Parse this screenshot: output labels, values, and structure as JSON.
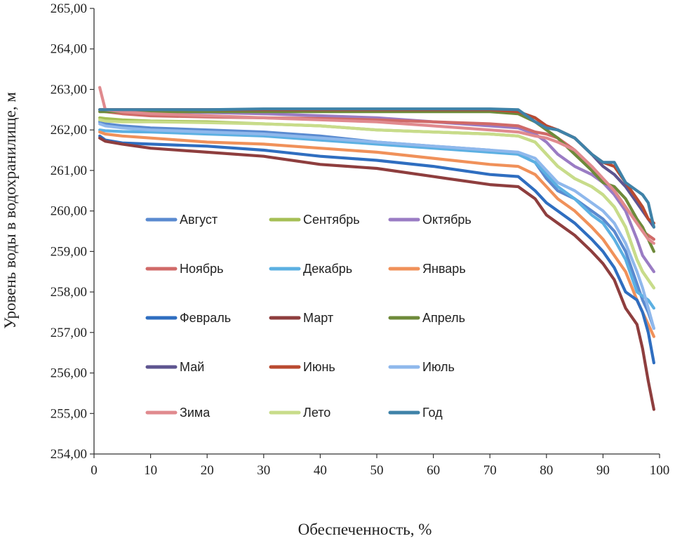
{
  "chart_data": {
    "type": "line",
    "title": "",
    "xlabel": "Обеспеченность, %",
    "ylabel": "Уровень воды в водохранилище, м",
    "xlim": [
      0,
      100
    ],
    "ylim": [
      254,
      265
    ],
    "x_ticks": [
      "0",
      "10",
      "20",
      "30",
      "40",
      "50",
      "60",
      "70",
      "80",
      "90",
      "100"
    ],
    "y_ticks": [
      "254,00",
      "255,00",
      "256,00",
      "257,00",
      "258,00",
      "259,00",
      "260,00",
      "261,00",
      "262,00",
      "263,00",
      "264,00",
      "265,00"
    ],
    "grid": false,
    "legend": "inside, middle-left",
    "x": [
      1,
      2,
      5,
      10,
      20,
      30,
      40,
      50,
      60,
      70,
      75,
      78,
      80,
      82,
      85,
      88,
      90,
      92,
      94,
      96,
      97,
      98,
      99
    ],
    "series": [
      {
        "name": "Август",
        "color": "#5a8ad0",
        "values": [
          262.2,
          262.15,
          262.1,
          262.05,
          262.0,
          261.95,
          261.85,
          261.7,
          261.6,
          261.5,
          261.4,
          261.2,
          260.8,
          260.5,
          260.3,
          260.0,
          259.8,
          259.5,
          259.0,
          258.2,
          257.8,
          257.5,
          257.1
        ]
      },
      {
        "name": "Сентябрь",
        "color": "#a5bf55",
        "values": [
          262.3,
          262.28,
          262.25,
          262.22,
          262.2,
          262.15,
          262.1,
          262.0,
          261.95,
          261.9,
          261.85,
          261.7,
          261.4,
          261.1,
          260.8,
          260.6,
          260.4,
          260.1,
          259.6,
          258.8,
          258.5,
          258.3,
          258.1
        ]
      },
      {
        "name": "Октябрь",
        "color": "#9a7cc4",
        "values": [
          262.5,
          262.48,
          262.46,
          262.45,
          262.43,
          262.4,
          262.35,
          262.3,
          262.2,
          262.1,
          262.05,
          261.9,
          261.7,
          261.4,
          261.1,
          260.9,
          260.7,
          260.4,
          260.0,
          259.3,
          258.9,
          258.7,
          258.5
        ]
      },
      {
        "name": "Ноябрь",
        "color": "#d06a68",
        "values": [
          262.5,
          262.45,
          262.4,
          262.35,
          262.32,
          262.3,
          262.28,
          262.25,
          262.2,
          262.15,
          262.1,
          261.95,
          261.9,
          261.8,
          261.5,
          261.1,
          260.8,
          260.5,
          260.1,
          259.7,
          259.5,
          259.4,
          259.3
        ]
      },
      {
        "name": "Декабрь",
        "color": "#5cb0e2",
        "values": [
          262.0,
          261.98,
          261.96,
          261.95,
          261.9,
          261.85,
          261.75,
          261.65,
          261.55,
          261.45,
          261.4,
          261.2,
          260.9,
          260.6,
          260.3,
          259.9,
          259.7,
          259.3,
          258.8,
          258.0,
          257.9,
          257.8,
          257.6
        ]
      },
      {
        "name": "Январь",
        "color": "#f0915a",
        "values": [
          261.95,
          261.9,
          261.85,
          261.8,
          261.7,
          261.65,
          261.55,
          261.45,
          261.3,
          261.15,
          261.1,
          260.9,
          260.6,
          260.3,
          260.0,
          259.6,
          259.3,
          258.9,
          258.5,
          257.8,
          257.5,
          257.2,
          256.9
        ]
      },
      {
        "name": "Февраль",
        "color": "#2f6ec0",
        "values": [
          261.85,
          261.75,
          261.68,
          261.65,
          261.6,
          261.5,
          261.35,
          261.25,
          261.1,
          260.9,
          260.85,
          260.5,
          260.2,
          260.0,
          259.7,
          259.3,
          259.0,
          258.6,
          258.0,
          257.8,
          257.5,
          257.0,
          256.25
        ]
      },
      {
        "name": "Март",
        "color": "#8e3e3e",
        "values": [
          261.8,
          261.72,
          261.65,
          261.55,
          261.45,
          261.35,
          261.15,
          261.05,
          260.85,
          260.65,
          260.6,
          260.3,
          259.9,
          259.7,
          259.4,
          259.0,
          258.7,
          258.3,
          257.6,
          257.2,
          256.6,
          255.8,
          255.1
        ]
      },
      {
        "name": "Апрель",
        "color": "#6e8a3a",
        "values": [
          262.45,
          262.45,
          262.45,
          262.45,
          262.45,
          262.45,
          262.45,
          262.45,
          262.45,
          262.45,
          262.4,
          262.2,
          262.0,
          261.8,
          261.4,
          261.0,
          260.7,
          260.6,
          260.3,
          259.8,
          259.6,
          259.3,
          259.0
        ]
      },
      {
        "name": "Май",
        "color": "#5e5590",
        "values": [
          262.5,
          262.5,
          262.5,
          262.5,
          262.5,
          262.5,
          262.5,
          262.5,
          262.5,
          262.5,
          262.45,
          262.3,
          262.1,
          262.0,
          261.8,
          261.4,
          261.1,
          260.9,
          260.6,
          260.2,
          260.0,
          259.8,
          259.6
        ]
      },
      {
        "name": "Июнь",
        "color": "#b94a30",
        "values": [
          262.5,
          262.5,
          262.5,
          262.5,
          262.5,
          262.5,
          262.5,
          262.5,
          262.5,
          262.5,
          262.45,
          262.3,
          262.1,
          262.0,
          261.8,
          261.4,
          261.2,
          261.1,
          260.7,
          260.3,
          260.1,
          259.8,
          259.7
        ]
      },
      {
        "name": "Июль",
        "color": "#8fb8ec",
        "values": [
          262.15,
          262.1,
          262.05,
          262.0,
          261.95,
          261.9,
          261.8,
          261.7,
          261.6,
          261.5,
          261.45,
          261.3,
          261.0,
          260.7,
          260.5,
          260.2,
          260.0,
          259.7,
          259.2,
          258.5,
          258.1,
          257.6,
          257.1
        ]
      },
      {
        "name": "Зима",
        "color": "#e08a8e",
        "values": [
          263.05,
          262.5,
          262.45,
          262.4,
          262.35,
          262.3,
          262.25,
          262.2,
          262.1,
          262.0,
          261.95,
          261.85,
          261.8,
          261.7,
          261.5,
          261.1,
          260.8,
          260.5,
          260.1,
          259.7,
          259.5,
          259.3,
          259.2
        ]
      },
      {
        "name": "Лето",
        "color": "#c8dc8a",
        "values": [
          262.25,
          262.22,
          262.2,
          262.2,
          262.18,
          262.15,
          262.1,
          262.0,
          261.95,
          261.9,
          261.85,
          261.7,
          261.4,
          261.1,
          260.8,
          260.6,
          260.4,
          260.1,
          259.6,
          258.8,
          258.5,
          258.3,
          258.1
        ]
      },
      {
        "name": "Год",
        "color": "#3f82a8",
        "values": [
          262.5,
          262.5,
          262.5,
          262.5,
          262.5,
          262.52,
          262.52,
          262.52,
          262.52,
          262.52,
          262.5,
          262.2,
          262.05,
          262.0,
          261.8,
          261.4,
          261.2,
          261.2,
          260.7,
          260.5,
          260.4,
          260.2,
          259.6
        ]
      }
    ]
  }
}
